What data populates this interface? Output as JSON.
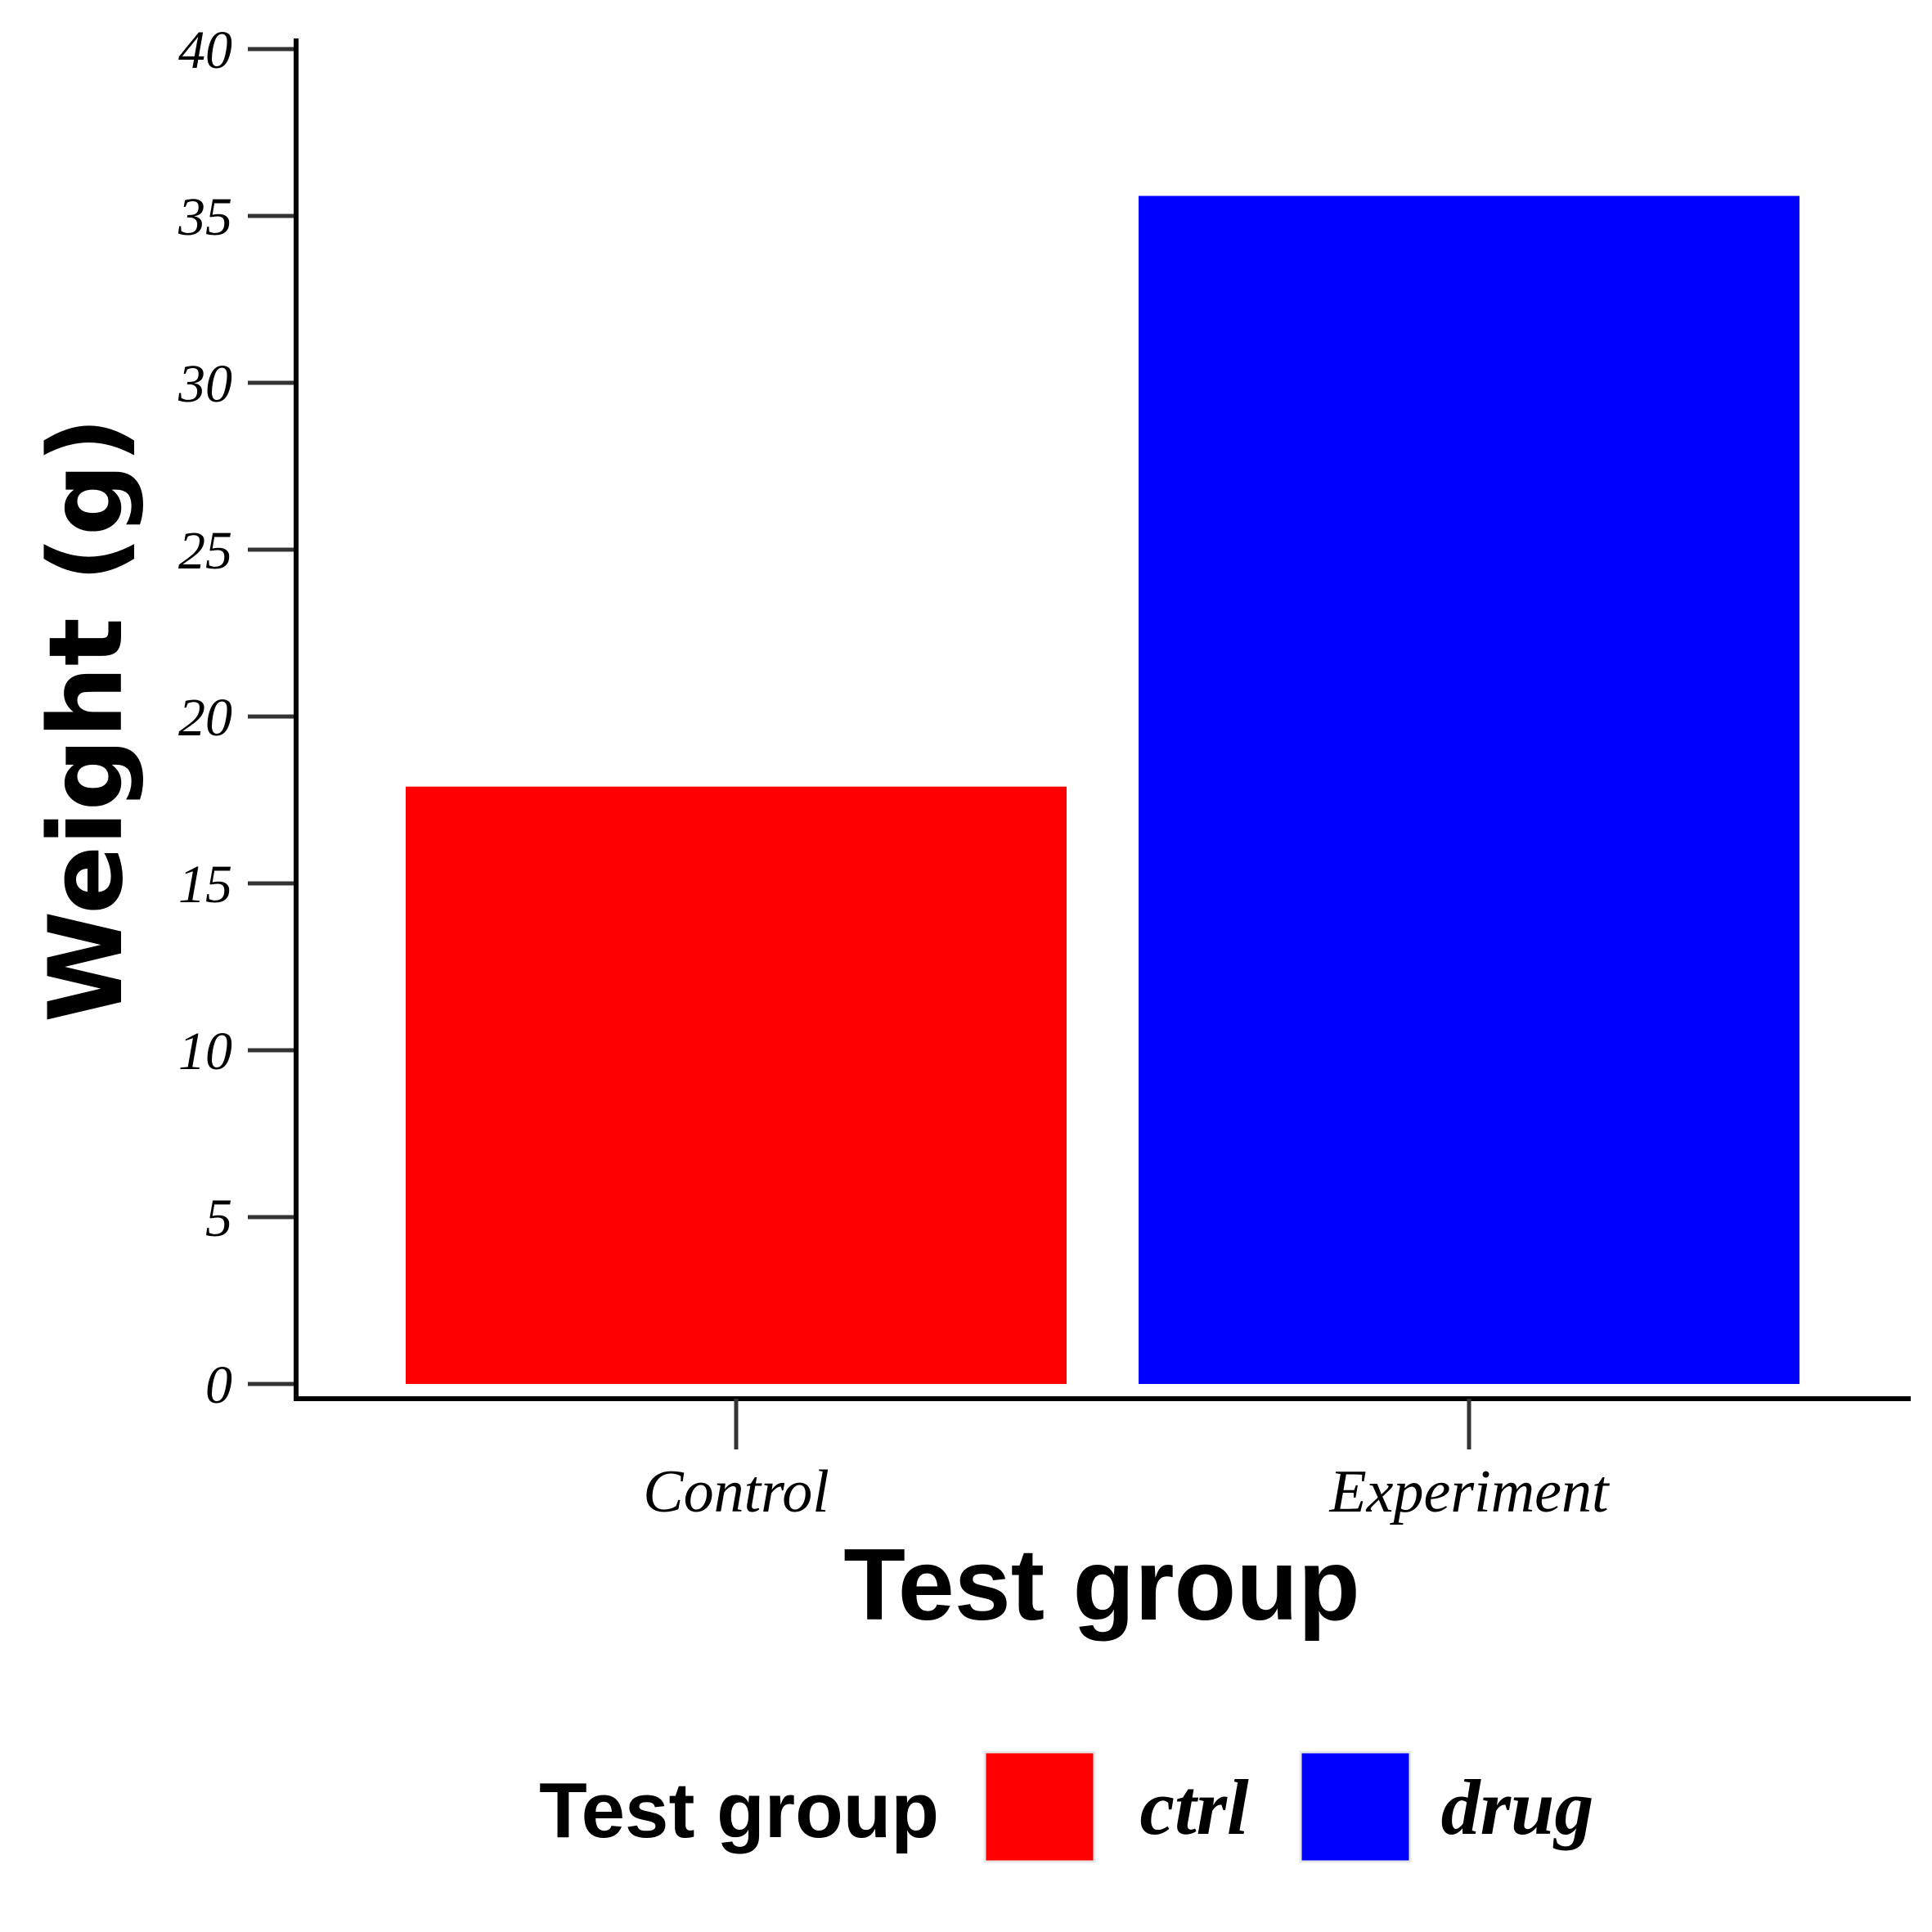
{
  "chart_data": {
    "type": "bar",
    "categories": [
      "Control",
      "Experiment"
    ],
    "values": [
      17.9,
      35.6
    ],
    "colors": [
      "#ff0000",
      "#0000ff"
    ],
    "xlabel": "Test group",
    "ylabel": "Weight (g)",
    "ylim": [
      0,
      40
    ],
    "yticks": [
      0,
      5,
      10,
      15,
      20,
      25,
      30,
      35,
      40
    ],
    "ytick_labels": [
      "0",
      "5",
      "10",
      "15",
      "20",
      "25",
      "30",
      "35",
      "40"
    ],
    "grid": false,
    "legend": {
      "title": "Test group",
      "position": "bottom",
      "entries": [
        {
          "label": "ctrl",
          "color": "#ff0000"
        },
        {
          "label": "drug",
          "color": "#0000ff"
        }
      ]
    }
  }
}
